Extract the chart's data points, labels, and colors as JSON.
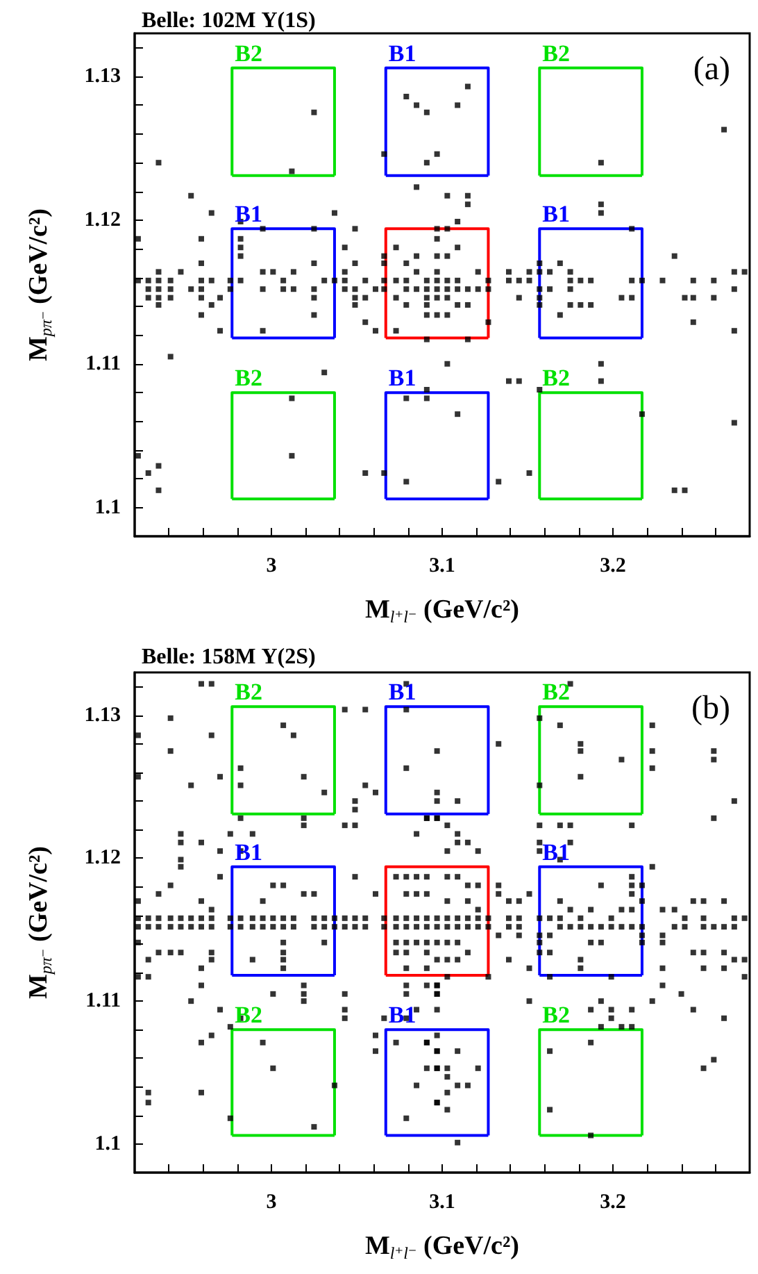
{
  "chart_data": [
    {
      "type": "scatter",
      "title": "Belle: 102M Υ(1S)",
      "xlabel": "M$_{l⁺l⁻}$ (GeV/c²)",
      "ylabel": "M$_{pπ⁻}$ (GeV/c²)",
      "xlim": [
        2.92,
        3.28
      ],
      "ylim": [
        1.098,
        1.133
      ],
      "xticks": [
        {
          "value": 2.94,
          "label": null
        },
        {
          "value": 2.96,
          "label": null
        },
        {
          "value": 2.98,
          "label": null
        },
        3,
        {
          "value": 3.02,
          "label": null
        },
        {
          "value": 3.04,
          "label": null
        },
        {
          "value": 3.06,
          "label": null
        },
        {
          "value": 3.08,
          "label": null
        },
        3.1,
        {
          "value": 3.12,
          "label": null
        },
        {
          "value": 3.14,
          "label": null
        },
        {
          "value": 3.16,
          "label": null
        },
        {
          "value": 3.18,
          "label": null
        },
        3.2,
        {
          "value": 3.22,
          "label": null
        },
        {
          "value": 3.24,
          "label": null
        },
        {
          "value": 3.26,
          "label": null
        }
      ],
      "yticks": [
        1.1,
        {
          "value": 1.102,
          "label": null
        },
        {
          "value": 1.104,
          "label": null
        },
        {
          "value": 1.106,
          "label": null
        },
        {
          "value": 1.108,
          "label": null
        },
        1.11,
        {
          "value": 1.112,
          "label": null
        },
        {
          "value": 1.114,
          "label": null
        },
        {
          "value": 1.116,
          "label": null
        },
        {
          "value": 1.118,
          "label": null
        },
        1.12,
        {
          "value": 1.122,
          "label": null
        },
        {
          "value": 1.124,
          "label": null
        },
        {
          "value": 1.126,
          "label": null
        },
        {
          "value": 1.128,
          "label": null
        },
        1.13,
        {
          "value": 1.132,
          "label": null
        }
      ],
      "annotations": [
        "(a)"
      ],
      "series": [
        {
          "marker": "square",
          "color": "#000000",
          "x": [
            2.922,
            2.922,
            2.922,
            2.928,
            2.928,
            2.928,
            2.928,
            2.934,
            2.934,
            2.934,
            2.934,
            2.934,
            2.934,
            2.934,
            2.934,
            2.941,
            2.941,
            2.941,
            2.941,
            2.947,
            2.953,
            2.953,
            2.959,
            2.959,
            2.959,
            2.959,
            2.959,
            2.959,
            2.965,
            2.965,
            2.965,
            2.97,
            2.97,
            2.976,
            2.976,
            2.982,
            2.982,
            2.982,
            2.982,
            2.982,
            2.995,
            2.995,
            2.995,
            2.995,
            3.001,
            3.007,
            3.007,
            3.013,
            3.013,
            3.025,
            3.012,
            3.012,
            3.012,
            3.025,
            3.025,
            3.025,
            3.025,
            3.025,
            3.031,
            3.031,
            3.037,
            3.037,
            3.043,
            3.043,
            3.043,
            3.043,
            3.049,
            3.049,
            3.049,
            3.049,
            3.049,
            3.055,
            3.055,
            3.055,
            3.055,
            3.061,
            3.061,
            3.066,
            3.066,
            3.066,
            3.066,
            3.066,
            3.066,
            3.073,
            3.073,
            3.073,
            3.073,
            3.079,
            3.079,
            3.079,
            3.079,
            3.079,
            3.079,
            3.079,
            3.085,
            3.085,
            3.085,
            3.085,
            3.085,
            3.091,
            3.091,
            3.091,
            3.091,
            3.091,
            3.091,
            3.091,
            3.091,
            3.091,
            3.091,
            3.097,
            3.097,
            3.097,
            3.097,
            3.097,
            3.097,
            3.097,
            3.115,
            3.109,
            3.097,
            3.103,
            3.115,
            3.115,
            3.109,
            3.103,
            3.103,
            3.109,
            3.097,
            3.103,
            3.109,
            3.121,
            3.127,
            3.103,
            3.109,
            3.115,
            3.121,
            3.127,
            3.103,
            3.109,
            3.115,
            3.103,
            3.127,
            3.115,
            3.103,
            3.139,
            3.145,
            3.151,
            3.139,
            3.151,
            3.145,
            3.157,
            3.157,
            3.157,
            3.157,
            3.157,
            3.163,
            3.163,
            3.169,
            3.175,
            3.175,
            3.175,
            3.175,
            3.181,
            3.181,
            3.187,
            3.187,
            3.169,
            3.193,
            3.193,
            3.193,
            3.211,
            3.205,
            3.211,
            3.211,
            3.217,
            3.229,
            3.236,
            3.242,
            3.247,
            3.247,
            3.247,
            3.259,
            3.259,
            3.271,
            3.277,
            3.271,
            3.271,
            3.265,
            3.139,
            3.145,
            3.157,
            3.193,
            3.193,
            3.217,
            3.109,
            3.151,
            3.133,
            3.236,
            3.242,
            3.271
          ],
          "values": [
            1.1187,
            1.1158,
            1.1036,
            1.1158,
            1.1152,
            1.1146,
            1.1024,
            1.124,
            1.1164,
            1.1158,
            1.1152,
            1.1146,
            1.1141,
            1.1029,
            1.1012,
            1.1158,
            1.1152,
            1.1146,
            1.1105,
            1.1164,
            1.1152,
            1.1217,
            1.1187,
            1.117,
            1.1158,
            1.1152,
            1.1146,
            1.1134,
            1.1205,
            1.1158,
            1.1141,
            1.1146,
            1.1123,
            1.1158,
            1.1152,
            1.1199,
            1.1187,
            1.1181,
            1.1175,
            1.1158,
            1.1194,
            1.1164,
            1.1152,
            1.1123,
            1.1164,
            1.1158,
            1.1152,
            1.1164,
            1.1152,
            1.1275,
            1.1234,
            1.1076,
            1.1036,
            1.1194,
            1.117,
            1.1152,
            1.1146,
            1.1134,
            1.1094,
            1.1158,
            1.1205,
            1.1158,
            1.1181,
            1.1164,
            1.1158,
            1.1152,
            1.1194,
            1.117,
            1.1152,
            1.1146,
            1.1141,
            1.1158,
            1.1146,
            1.1129,
            1.1024,
            1.1152,
            1.1123,
            1.1246,
            1.1175,
            1.117,
            1.1158,
            1.1152,
            1.1024,
            1.1181,
            1.1158,
            1.1146,
            1.1123,
            1.1286,
            1.117,
            1.1158,
            1.1152,
            1.1141,
            1.1076,
            1.1018,
            1.128,
            1.1223,
            1.1175,
            1.1164,
            1.1152,
            1.1275,
            1.124,
            1.1158,
            1.1152,
            1.1146,
            1.1141,
            1.1134,
            1.1117,
            1.1082,
            1.1076,
            1.1194,
            1.1187,
            1.1175,
            1.1164,
            1.1158,
            1.1152,
            1.1146,
            1.1293,
            1.128,
            1.1246,
            1.1217,
            1.1217,
            1.1211,
            1.1199,
            1.1194,
            1.1175,
            1.1181,
            1.1134,
            1.1158,
            1.1158,
            1.1164,
            1.1158,
            1.1152,
            1.1152,
            1.1152,
            1.1152,
            1.1152,
            1.1146,
            1.1141,
            1.1141,
            1.1134,
            1.1129,
            1.1117,
            1.11,
            1.1158,
            1.1158,
            1.1158,
            1.1164,
            1.1164,
            1.1146,
            1.117,
            1.1164,
            1.1152,
            1.1146,
            1.1141,
            1.1164,
            1.1152,
            1.117,
            1.1164,
            1.1158,
            1.1152,
            1.1141,
            1.1158,
            1.1141,
            1.1158,
            1.1141,
            1.1134,
            1.1211,
            1.1205,
            1.124,
            1.1194,
            1.1146,
            1.1146,
            1.1158,
            1.1158,
            1.1158,
            1.1175,
            1.1146,
            1.1158,
            1.1146,
            1.1129,
            1.1158,
            1.1146,
            1.1164,
            1.1164,
            1.1152,
            1.1123,
            1.1263,
            1.1088,
            1.1088,
            1.1082,
            1.11,
            1.1088,
            1.1065,
            1.1065,
            1.1024,
            1.1018,
            1.1012,
            1.1012,
            1.1059
          ]
        },
        {
          "type": "line",
          "name": "B2",
          "marker": "none",
          "color": "#00e000",
          "x": [
            2.977,
            2.977,
            3.037,
            3.037
          ],
          "values": [
            1.1231,
            1.1306,
            1.1306,
            1.1231
          ]
        },
        {
          "type": "line",
          "marker": "none",
          "color": "#00e000",
          "x": [
            2.977,
            3.037
          ],
          "values": [
            1.1231,
            1.1231
          ]
        },
        {
          "type": "line",
          "name": "B1",
          "marker": "none",
          "color": "#0000ff",
          "x": [
            3.067,
            3.067,
            3.127,
            3.127
          ],
          "values": [
            1.1231,
            1.1306,
            1.1306,
            1.1231
          ]
        },
        {
          "type": "line",
          "marker": "none",
          "color": "#0000ff",
          "x": [
            3.067,
            3.127
          ],
          "values": [
            1.1231,
            1.1231
          ]
        },
        {
          "type": "line",
          "name": "B2",
          "marker": "none",
          "color": "#00e000",
          "x": [
            3.157,
            3.157,
            3.217,
            3.217
          ],
          "values": [
            1.1231,
            1.1306,
            1.1306,
            1.1231
          ]
        },
        {
          "type": "line",
          "marker": "none",
          "color": "#00e000",
          "x": [
            3.157,
            3.217
          ],
          "values": [
            1.1231,
            1.1231
          ]
        },
        {
          "type": "line",
          "name": "B1",
          "marker": "none",
          "color": "#0000ff",
          "x": [
            2.977,
            2.977,
            3.037,
            3.037
          ],
          "values": [
            1.1118,
            1.1194,
            1.1194,
            1.1118
          ]
        },
        {
          "type": "line",
          "marker": "none",
          "color": "#0000ff",
          "x": [
            2.977,
            3.037
          ],
          "values": [
            1.1118,
            1.1118
          ]
        },
        {
          "type": "line",
          "marker": "none",
          "color": "#ff0000",
          "x": [
            3.067,
            3.067,
            3.127,
            3.127
          ],
          "values": [
            1.1118,
            1.1194,
            1.1194,
            1.1118
          ]
        },
        {
          "type": "line",
          "marker": "none",
          "color": "#ff0000",
          "x": [
            3.067,
            3.127
          ],
          "values": [
            1.1118,
            1.1118
          ]
        },
        {
          "type": "line",
          "name": "B1",
          "marker": "none",
          "color": "#0000ff",
          "x": [
            3.157,
            3.157,
            3.217,
            3.217
          ],
          "values": [
            1.1118,
            1.1194,
            1.1194,
            1.1118
          ]
        },
        {
          "type": "line",
          "marker": "none",
          "color": "#0000ff",
          "x": [
            3.157,
            3.217
          ],
          "values": [
            1.1118,
            1.1118
          ]
        },
        {
          "type": "line",
          "name": "B2",
          "marker": "none",
          "color": "#00e000",
          "x": [
            2.977,
            2.977,
            3.037,
            3.037
          ],
          "values": [
            1.1006,
            1.108,
            1.108,
            1.1006
          ]
        },
        {
          "type": "line",
          "marker": "none",
          "color": "#00e000",
          "x": [
            2.977,
            3.037
          ],
          "values": [
            1.1006,
            1.1006
          ]
        },
        {
          "type": "line",
          "name": "B1",
          "marker": "none",
          "color": "#0000ff",
          "x": [
            3.067,
            3.067,
            3.127,
            3.127
          ],
          "values": [
            1.1006,
            1.108,
            1.108,
            1.1006
          ]
        },
        {
          "type": "line",
          "marker": "none",
          "color": "#0000ff",
          "x": [
            3.067,
            3.127
          ],
          "values": [
            1.1006,
            1.1006
          ]
        },
        {
          "type": "line",
          "name": "B2",
          "marker": "none",
          "color": "#00e000",
          "x": [
            3.157,
            3.157,
            3.217,
            3.217
          ],
          "values": [
            1.1006,
            1.108,
            1.108,
            1.1006
          ]
        },
        {
          "type": "line",
          "marker": "none",
          "color": "#00e000",
          "x": [
            3.157,
            3.217
          ],
          "values": [
            1.1006,
            1.1006
          ]
        }
      ]
    },
    {
      "type": "scatter",
      "title": "Belle: 158M Υ(2S)",
      "xlabel": "M$_{l⁺l⁻}$ (GeV/c²)",
      "ylabel": "M$_{pπ⁻}$ (GeV/c²)",
      "xlim": [
        2.92,
        3.28
      ],
      "ylim": [
        1.098,
        1.133
      ],
      "xticks": [
        {
          "value": 2.94,
          "label": null
        },
        {
          "value": 2.96,
          "label": null
        },
        {
          "value": 2.98,
          "label": null
        },
        3,
        {
          "value": 3.02,
          "label": null
        },
        {
          "value": 3.04,
          "label": null
        },
        {
          "value": 3.06,
          "label": null
        },
        {
          "value": 3.08,
          "label": null
        },
        3.1,
        {
          "value": 3.12,
          "label": null
        },
        {
          "value": 3.14,
          "label": null
        },
        {
          "value": 3.16,
          "label": null
        },
        {
          "value": 3.18,
          "label": null
        },
        3.2,
        {
          "value": 3.22,
          "label": null
        },
        {
          "value": 3.24,
          "label": null
        },
        {
          "value": 3.26,
          "label": null
        }
      ],
      "yticks": [
        1.1,
        {
          "value": 1.102,
          "label": null
        },
        {
          "value": 1.104,
          "label": null
        },
        {
          "value": 1.106,
          "label": null
        },
        {
          "value": 1.108,
          "label": null
        },
        1.11,
        {
          "value": 1.112,
          "label": null
        },
        {
          "value": 1.114,
          "label": null
        },
        {
          "value": 1.116,
          "label": null
        },
        {
          "value": 1.118,
          "label": null
        },
        1.12,
        {
          "value": 1.122,
          "label": null
        },
        {
          "value": 1.124,
          "label": null
        },
        {
          "value": 1.126,
          "label": null
        },
        {
          "value": 1.128,
          "label": null
        },
        1.13,
        {
          "value": 1.132,
          "label": null
        }
      ],
      "annotations": [
        "(b)"
      ],
      "series": [
        {
          "marker": "square",
          "color": "#000000",
          "x": [
            2.922,
            2.922,
            2.941,
            2.941,
            2.959,
            2.965,
            2.965,
            2.953,
            2.97,
            2.982,
            2.982,
            3.007,
            3.013,
            3.019,
            3.031,
            2.982,
            3.019,
            3.019,
            3.043,
            3.055,
            3.049,
            3.049,
            3.061,
            3.043,
            3.049,
            3.055,
            3.079,
            3.079,
            3.079,
            3.097,
            3.097,
            3.097,
            3.091,
            3.097,
            3.085,
            2.922,
            2.928,
            2.934,
            2.941,
            2.947,
            2.953,
            2.959,
            2.965,
            2.976,
            2.982,
            2.989,
            2.995,
            3.001,
            3.007,
            3.013,
            3.025,
            3.031,
            3.037,
            3.043,
            3.049,
            3.055,
            3.066,
            3.073,
            3.079,
            3.085,
            3.091,
            3.097,
            2.922,
            2.928,
            2.934,
            2.941,
            2.947,
            2.953,
            2.959,
            2.965,
            2.976,
            2.982,
            2.989,
            2.995,
            3.001,
            3.007,
            3.013,
            3.025,
            3.031,
            3.037,
            3.043,
            3.049,
            3.055,
            3.066,
            3.073,
            3.079,
            3.085,
            3.091,
            3.097,
            2.922,
            2.922,
            2.934,
            2.941,
            2.947,
            2.947,
            2.947,
            2.947,
            2.959,
            2.97,
            2.976,
            2.989,
            2.982,
            2.97,
            2.959,
            2.965,
            2.934,
            2.941,
            2.947,
            2.965,
            2.965,
            2.989,
            2.995,
            3.001,
            3.007,
            3.019,
            3.025,
            3.007,
            3.007,
            3.007,
            3.007,
            3.031,
            3.049,
            3.061,
            3.073,
            3.079,
            3.085,
            3.091,
            3.079,
            3.085,
            3.091,
            3.073,
            3.079,
            3.085,
            3.091,
            3.097,
            3.073,
            3.079,
            3.091,
            3.079,
            3.091,
            3.097,
            2.922,
            2.928,
            2.928,
            2.953,
            2.959,
            2.959,
            2.965,
            2.959,
            2.976,
            2.982,
            2.995,
            3.001,
            3.001,
            3.019,
            3.019,
            3.019,
            3.025,
            3.037,
            2.976,
            2.928,
            2.928,
            2.959,
            2.97,
            3.043,
            3.043,
            3.043,
            3.061,
            3.061,
            3.066,
            3.073,
            3.079,
            3.079,
            3.079,
            3.085,
            3.091,
            3.097,
            3.097,
            3.079,
            3.085,
            3.091,
            3.097,
            3.097,
            3.097,
            3.175,
            3.157,
            3.169,
            3.181,
            3.181,
            3.205,
            3.181,
            3.157,
            3.223,
            3.223,
            3.223,
            3.259,
            3.259,
            3.271,
            3.259,
            3.133,
            3.109,
            3.091,
            3.097,
            3.157,
            3.169,
            3.175,
            3.211,
            3.103,
            3.109,
            3.109,
            3.115,
            3.103,
            3.121,
            3.157,
            3.157,
            3.175,
            3.169,
            3.223,
            3.133,
            3.133,
            3.151,
            3.145,
            3.139,
            3.169,
            3.193,
            3.211,
            3.211,
            3.217,
            3.211,
            3.247,
            3.253,
            3.265,
            3.217,
            3.229,
            3.236,
            3.242,
            3.253,
            3.277,
            3.271,
            3.139,
            3.145,
            3.157,
            3.163,
            3.169,
            3.181,
            3.199,
            3.211,
            3.205,
            3.187,
            3.175,
            3.169,
            3.175,
            3.181,
            3.187,
            3.193,
            3.199,
            3.205,
            3.211,
            3.217,
            3.139,
            3.145,
            3.236,
            3.242,
            3.253,
            3.259,
            3.265,
            3.271,
            3.103,
            3.109,
            3.115,
            3.121,
            3.127,
            3.103,
            3.109,
            3.115,
            3.121,
            3.127,
            3.133,
            3.145,
            3.163,
            3.187,
            3.193,
            3.157,
            3.157,
            3.157,
            3.163,
            3.217,
            3.217,
            3.229,
            3.229,
            3.247,
            3.253,
            3.265,
            3.271,
            3.277,
            3.253,
            3.265,
            3.277,
            3.139,
            3.151,
            3.181,
            3.181,
            3.163,
            3.199,
            3.229,
            3.229,
            3.24,
            3.223,
            3.151,
            3.193,
            3.187,
            3.199,
            3.211,
            3.199,
            3.193,
            3.205,
            3.211,
            3.247,
            3.265,
            3.253,
            3.259,
            3.163,
            3.187,
            3.163,
            3.187,
            3.109,
            3.097,
            3.097,
            3.097,
            3.091,
            3.103,
            3.109,
            3.115,
            3.121,
            3.103,
            3.115,
            3.121,
            3.103,
            3.109,
            3.115,
            3.103,
            3.109,
            3.103,
            3.127,
            3.097,
            3.091,
            3.097,
            3.109,
            3.097,
            3.103,
            3.121,
            3.103,
            3.109,
            3.115,
            3.103,
            3.097,
            3.103
          ],
          "values": [
            1.1286,
            1.1257,
            1.1298,
            1.1275,
            1.1322,
            1.1322,
            1.1286,
            1.1251,
            1.1257,
            1.1263,
            1.1251,
            1.1293,
            1.1286,
            1.1257,
            1.1246,
            1.1228,
            1.1228,
            1.1223,
            1.1304,
            1.1304,
            1.124,
            1.1234,
            1.1246,
            1.1223,
            1.1223,
            1.1251,
            1.1322,
            1.1304,
            1.1263,
            1.1275,
            1.1246,
            1.124,
            1.1228,
            1.1228,
            1.1217,
            1.1158,
            1.1158,
            1.1158,
            1.1158,
            1.1158,
            1.1158,
            1.1158,
            1.1158,
            1.1158,
            1.1158,
            1.1158,
            1.1158,
            1.1158,
            1.1158,
            1.1158,
            1.1158,
            1.1158,
            1.1158,
            1.1158,
            1.1158,
            1.1158,
            1.1158,
            1.1158,
            1.1158,
            1.1158,
            1.1158,
            1.1158,
            1.1152,
            1.1152,
            1.1152,
            1.1152,
            1.1152,
            1.1152,
            1.1152,
            1.1152,
            1.1152,
            1.1152,
            1.1152,
            1.1152,
            1.1152,
            1.1152,
            1.1152,
            1.1152,
            1.1152,
            1.1152,
            1.1152,
            1.1152,
            1.1152,
            1.1152,
            1.1152,
            1.1152,
            1.1152,
            1.1152,
            1.1152,
            1.117,
            1.1141,
            1.1175,
            1.1181,
            1.1199,
            1.1194,
            1.1211,
            1.1217,
            1.1211,
            1.1205,
            1.1217,
            1.1217,
            1.1205,
            1.1187,
            1.117,
            1.1164,
            1.1134,
            1.1134,
            1.1134,
            1.1134,
            1.1129,
            1.1129,
            1.117,
            1.1181,
            1.1181,
            1.1175,
            1.1175,
            1.1141,
            1.1134,
            1.1129,
            1.1123,
            1.1141,
            1.1187,
            1.1175,
            1.1187,
            1.1187,
            1.1187,
            1.1187,
            1.1175,
            1.1175,
            1.1175,
            1.1141,
            1.1141,
            1.1141,
            1.1141,
            1.1141,
            1.1134,
            1.1134,
            1.1134,
            1.1123,
            1.1123,
            1.1129,
            1.1117,
            1.1117,
            1.1129,
            1.11,
            1.1123,
            1.1111,
            1.1076,
            1.1071,
            1.1082,
            1.1088,
            1.1071,
            1.1053,
            1.1105,
            1.1111,
            1.1105,
            1.11,
            1.1012,
            1.1041,
            1.1018,
            1.1036,
            1.1029,
            1.1036,
            1.1094,
            1.1105,
            1.1094,
            1.1088,
            1.1076,
            1.1065,
            1.1088,
            1.1071,
            1.1088,
            1.1105,
            1.1111,
            1.1094,
            1.1071,
            1.1065,
            1.1029,
            1.1018,
            1.1041,
            1.1053,
            1.1053,
            1.1105,
            1.1111,
            1.1322,
            1.1298,
            1.1293,
            1.128,
            1.1275,
            1.1269,
            1.1257,
            1.1251,
            1.1293,
            1.1275,
            1.1263,
            1.1275,
            1.1269,
            1.124,
            1.1228,
            1.128,
            1.124,
            1.1228,
            1.1228,
            1.1223,
            1.1223,
            1.1223,
            1.1223,
            1.1223,
            1.1217,
            1.1211,
            1.1211,
            1.1205,
            1.1205,
            1.1211,
            1.1205,
            1.1211,
            1.1199,
            1.1194,
            1.1181,
            1.1175,
            1.1175,
            1.117,
            1.117,
            1.117,
            1.1181,
            1.1187,
            1.1181,
            1.1181,
            1.1175,
            1.117,
            1.117,
            1.117,
            1.117,
            1.1164,
            1.1164,
            1.1158,
            1.1158,
            1.1158,
            1.1158,
            1.1158,
            1.1158,
            1.1158,
            1.1158,
            1.1158,
            1.1158,
            1.1158,
            1.1164,
            1.1164,
            1.1164,
            1.1164,
            1.1152,
            1.1152,
            1.1152,
            1.1152,
            1.1152,
            1.1152,
            1.1152,
            1.1152,
            1.1152,
            1.1152,
            1.1152,
            1.1152,
            1.1152,
            1.1152,
            1.1152,
            1.1152,
            1.1152,
            1.1158,
            1.1158,
            1.1158,
            1.1158,
            1.1158,
            1.1152,
            1.1152,
            1.1152,
            1.1152,
            1.1152,
            1.1146,
            1.1146,
            1.1146,
            1.1141,
            1.1141,
            1.1146,
            1.1141,
            1.1134,
            1.1134,
            1.1146,
            1.1141,
            1.1146,
            1.1141,
            1.1134,
            1.1134,
            1.1134,
            1.1129,
            1.1129,
            1.1123,
            1.1123,
            1.1117,
            1.1129,
            1.1123,
            1.1129,
            1.1123,
            1.1117,
            1.1117,
            1.1123,
            1.1111,
            1.1105,
            1.11,
            1.11,
            1.11,
            1.1094,
            1.1094,
            1.1094,
            1.1088,
            1.1082,
            1.1082,
            1.1082,
            1.1094,
            1.1088,
            1.1053,
            1.1059,
            1.1065,
            1.1071,
            1.1024,
            1.1006,
            1.1001,
            1.1111,
            1.1105,
            1.1094,
            1.1111,
            1.1187,
            1.1187,
            1.1181,
            1.1181,
            1.117,
            1.117,
            1.1164,
            1.1141,
            1.1141,
            1.1134,
            1.1129,
            1.1129,
            1.1117,
            1.1117,
            1.1076,
            1.1071,
            1.1065,
            1.1065,
            1.1053,
            1.1053,
            1.1053,
            1.1047,
            1.1041,
            1.1041,
            1.1036,
            1.1029,
            1.1024
          ]
        },
        {
          "type": "line",
          "name": "B2",
          "marker": "none",
          "color": "#00e000",
          "x": [
            2.977,
            2.977,
            3.037,
            3.037
          ],
          "values": [
            1.1231,
            1.1306,
            1.1306,
            1.1231
          ]
        },
        {
          "type": "line",
          "marker": "none",
          "color": "#00e000",
          "x": [
            2.977,
            3.037
          ],
          "values": [
            1.1231,
            1.1231
          ]
        },
        {
          "type": "line",
          "name": "B1",
          "marker": "none",
          "color": "#0000ff",
          "x": [
            3.067,
            3.067,
            3.127,
            3.127
          ],
          "values": [
            1.1231,
            1.1306,
            1.1306,
            1.1231
          ]
        },
        {
          "type": "line",
          "marker": "none",
          "color": "#0000ff",
          "x": [
            3.067,
            3.127
          ],
          "values": [
            1.1231,
            1.1231
          ]
        },
        {
          "type": "line",
          "name": "B2",
          "marker": "none",
          "color": "#00e000",
          "x": [
            3.157,
            3.157,
            3.217,
            3.217
          ],
          "values": [
            1.1231,
            1.1306,
            1.1306,
            1.1231
          ]
        },
        {
          "type": "line",
          "marker": "none",
          "color": "#00e000",
          "x": [
            3.157,
            3.217
          ],
          "values": [
            1.1231,
            1.1231
          ]
        },
        {
          "type": "line",
          "name": "B1",
          "marker": "none",
          "color": "#0000ff",
          "x": [
            2.977,
            2.977,
            3.037,
            3.037
          ],
          "values": [
            1.1118,
            1.1194,
            1.1194,
            1.1118
          ]
        },
        {
          "type": "line",
          "marker": "none",
          "color": "#0000ff",
          "x": [
            2.977,
            3.037
          ],
          "values": [
            1.1118,
            1.1118
          ]
        },
        {
          "type": "line",
          "marker": "none",
          "color": "#ff0000",
          "x": [
            3.067,
            3.067,
            3.127,
            3.127
          ],
          "values": [
            1.1118,
            1.1194,
            1.1194,
            1.1118
          ]
        },
        {
          "type": "line",
          "marker": "none",
          "color": "#ff0000",
          "x": [
            3.067,
            3.127
          ],
          "values": [
            1.1118,
            1.1118
          ]
        },
        {
          "type": "line",
          "name": "B1",
          "marker": "none",
          "color": "#0000ff",
          "x": [
            3.157,
            3.157,
            3.217,
            3.217
          ],
          "values": [
            1.1118,
            1.1194,
            1.1194,
            1.1118
          ]
        },
        {
          "type": "line",
          "marker": "none",
          "color": "#0000ff",
          "x": [
            3.157,
            3.217
          ],
          "values": [
            1.1118,
            1.1118
          ]
        },
        {
          "type": "line",
          "name": "B2",
          "marker": "none",
          "color": "#00e000",
          "x": [
            2.977,
            2.977,
            3.037,
            3.037
          ],
          "values": [
            1.1006,
            1.108,
            1.108,
            1.1006
          ]
        },
        {
          "type": "line",
          "marker": "none",
          "color": "#00e000",
          "x": [
            2.977,
            3.037
          ],
          "values": [
            1.1006,
            1.1006
          ]
        },
        {
          "type": "line",
          "name": "B1",
          "marker": "none",
          "color": "#0000ff",
          "x": [
            3.067,
            3.067,
            3.127,
            3.127
          ],
          "values": [
            1.1006,
            1.108,
            1.108,
            1.1006
          ]
        },
        {
          "type": "line",
          "marker": "none",
          "color": "#0000ff",
          "x": [
            3.067,
            3.127
          ],
          "values": [
            1.1006,
            1.1006
          ]
        },
        {
          "type": "line",
          "name": "B2",
          "marker": "none",
          "color": "#00e000",
          "x": [
            3.157,
            3.157,
            3.217,
            3.217
          ],
          "values": [
            1.1006,
            1.108,
            1.108,
            1.1006
          ]
        },
        {
          "type": "line",
          "marker": "none",
          "color": "#00e000",
          "x": [
            3.157,
            3.217
          ],
          "values": [
            1.1006,
            1.1006
          ]
        }
      ]
    }
  ]
}
